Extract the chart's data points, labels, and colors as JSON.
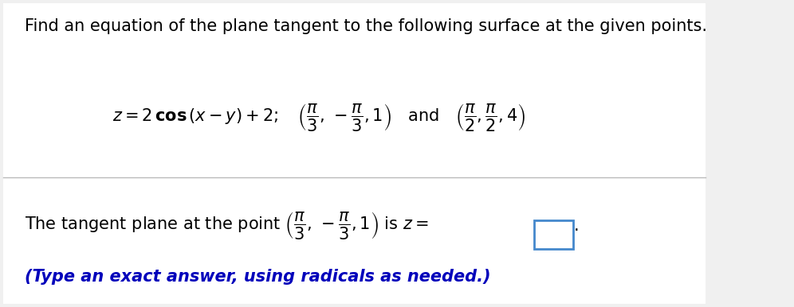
{
  "bg_color": "#f0f0f0",
  "panel_color": "#ffffff",
  "title_text": "Find an equation of the plane tangent to the following surface at the given points.",
  "title_color": "#000000",
  "title_fontsize": 15.0,
  "line1_color": "#000000",
  "line1_fontsize": 15.0,
  "line2_color": "#000000",
  "line2_fontsize": 15.0,
  "line3_text": "(Type an exact answer, using radicals as needed.)",
  "line3_color": "#0000bb",
  "line3_fontsize": 15.0,
  "divider_color": "#bbbbbb",
  "box_color": "#4488cc"
}
